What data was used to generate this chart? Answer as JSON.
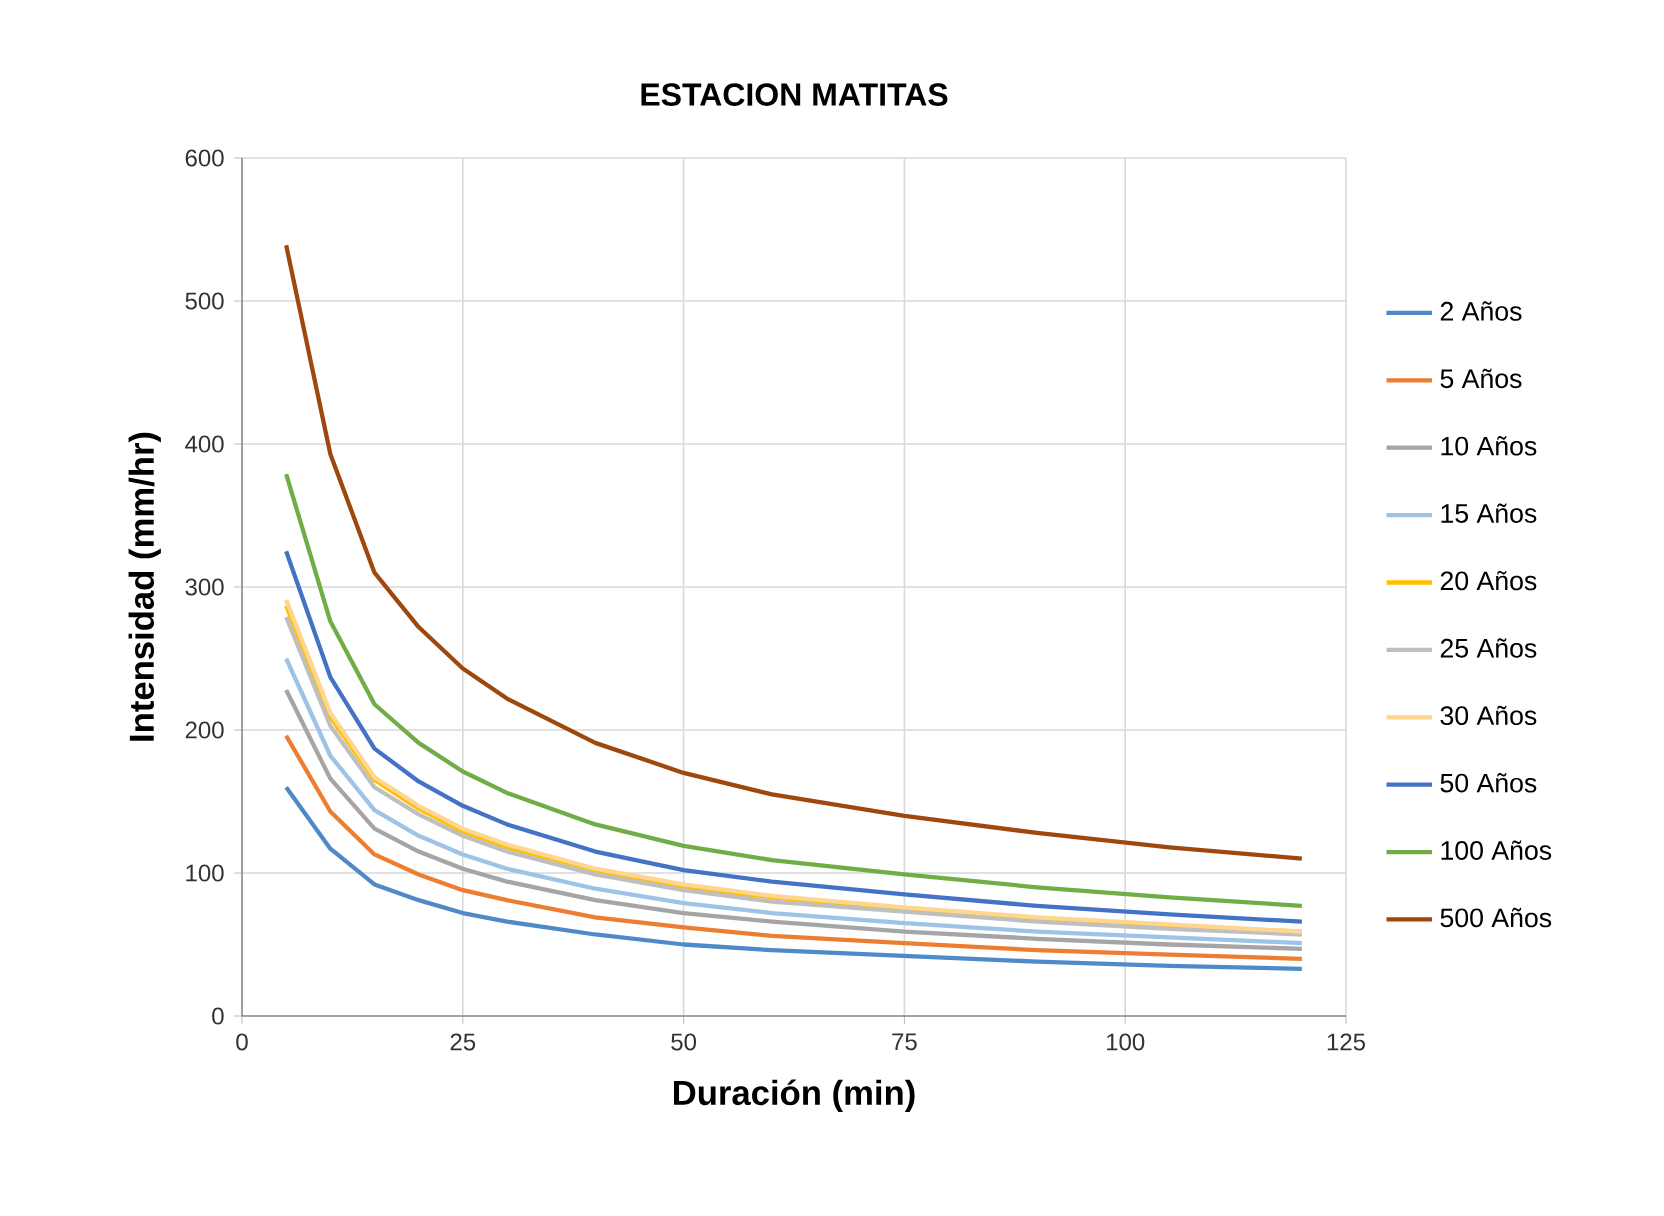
{
  "chart_data": {
    "type": "line",
    "title": "ESTACION  MATITAS",
    "xlabel": "Duración (min)",
    "ylabel": "Intensidad (mm/hr)",
    "xlim": [
      0,
      125
    ],
    "xticks": [
      0,
      25,
      50,
      75,
      100,
      125
    ],
    "ylim": [
      0,
      600
    ],
    "yticks": [
      0,
      100,
      200,
      300,
      400,
      500,
      600
    ],
    "grid": true,
    "legend": "right",
    "marker": "none",
    "line_style": "solid",
    "x": [
      5,
      10,
      15,
      20,
      25,
      30,
      40,
      50,
      60,
      75,
      90,
      105,
      120
    ],
    "series": [
      {
        "name": "2 Años",
        "color": "#4e8ac8",
        "values": [
          160,
          117,
          92,
          81,
          72,
          66,
          57,
          50,
          46,
          42,
          38,
          35,
          33
        ]
      },
      {
        "name": "5 Años",
        "color": "#ed7d31",
        "values": [
          196,
          143,
          113,
          99,
          88,
          81,
          69,
          62,
          56,
          51,
          46,
          43,
          40
        ]
      },
      {
        "name": "10 Años",
        "color": "#a5a5a5",
        "values": [
          228,
          166,
          131,
          115,
          103,
          94,
          81,
          72,
          66,
          59,
          54,
          50,
          47
        ]
      },
      {
        "name": "15 Años",
        "color": "#9dc3e6",
        "values": [
          250,
          182,
          144,
          126,
          113,
          103,
          89,
          79,
          72,
          65,
          59,
          55,
          51
        ]
      },
      {
        "name": "20 Años",
        "color": "#ffc000",
        "values": [
          287,
          209,
          165,
          145,
          129,
          118,
          102,
          90,
          83,
          75,
          68,
          63,
          59
        ]
      },
      {
        "name": "25 Años",
        "color": "#bfbfbf",
        "values": [
          279,
          203,
          160,
          141,
          126,
          115,
          99,
          88,
          80,
          73,
          66,
          61,
          57
        ]
      },
      {
        "name": "30 Años",
        "color": "#ffd68f",
        "values": [
          291,
          212,
          167,
          147,
          131,
          120,
          103,
          92,
          84,
          76,
          69,
          64,
          59
        ]
      },
      {
        "name": "50 Años",
        "color": "#4472c4",
        "values": [
          325,
          237,
          187,
          164,
          147,
          134,
          115,
          102,
          94,
          85,
          77,
          71,
          66
        ]
      },
      {
        "name": "100 Años",
        "color": "#70ad47",
        "values": [
          379,
          276,
          218,
          191,
          171,
          156,
          134,
          119,
          109,
          99,
          90,
          83,
          77
        ]
      },
      {
        "name": "500 Años",
        "color": "#9e480e",
        "values": [
          539,
          393,
          310,
          272,
          243,
          222,
          191,
          170,
          155,
          140,
          128,
          118,
          110
        ]
      }
    ]
  }
}
